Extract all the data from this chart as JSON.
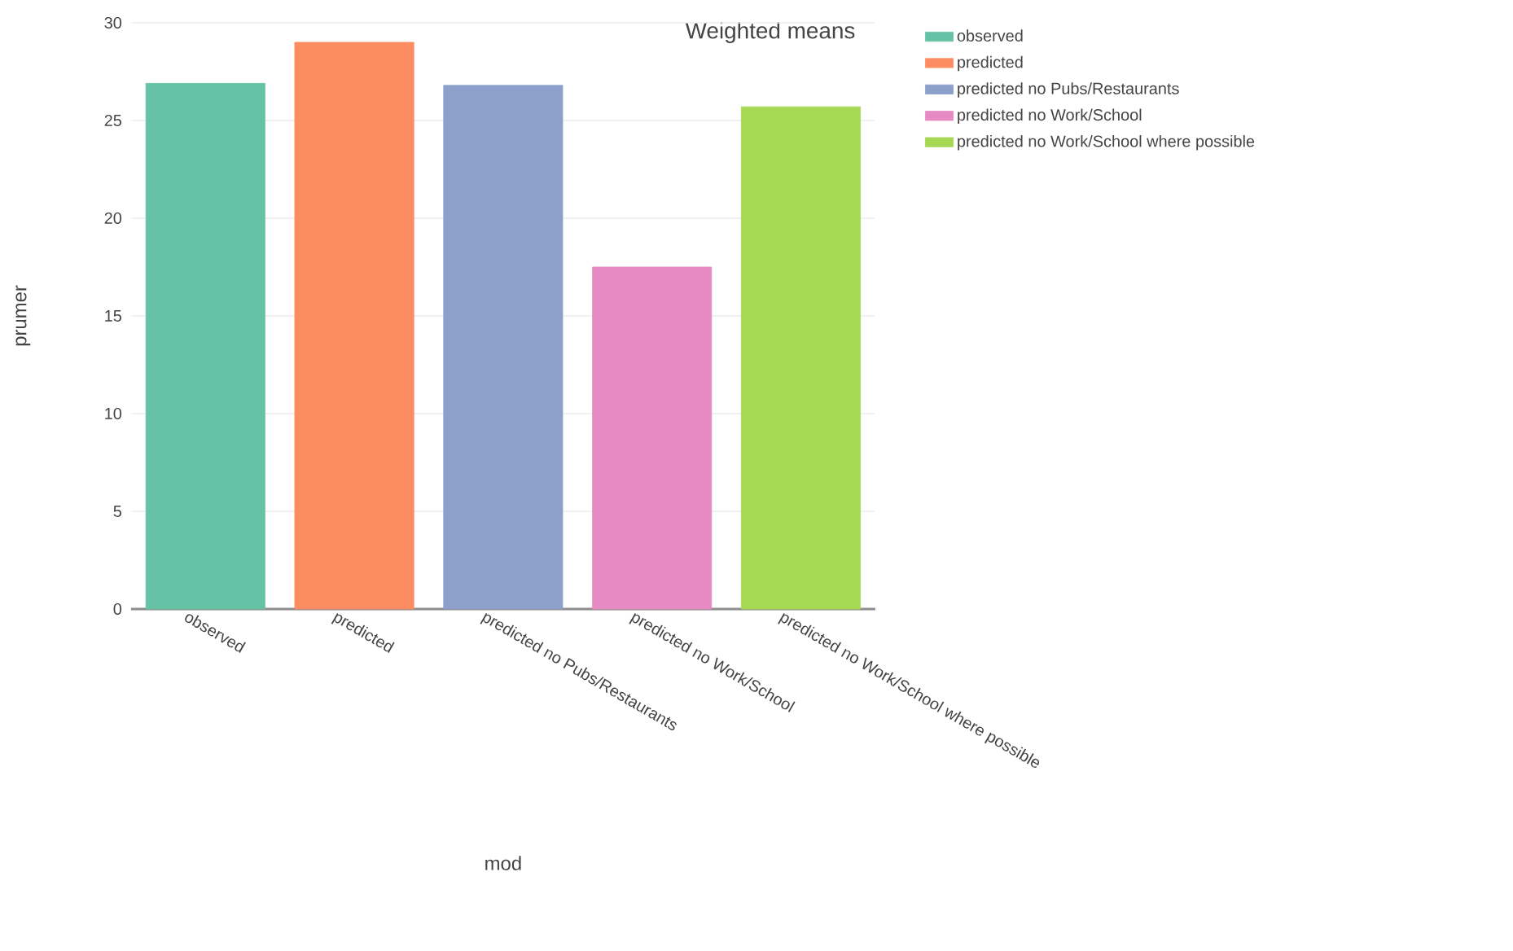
{
  "chart_data": {
    "type": "bar",
    "title": "Weighted means",
    "xlabel": "mod",
    "ylabel": "prumer",
    "categories": [
      "observed",
      "predicted",
      "predicted no Pubs/Restaurants",
      "predicted no Work/School",
      "predicted no Work/School where possible"
    ],
    "series": [
      {
        "name": "observed",
        "color": "#66c2a5",
        "values": [
          26.9,
          null,
          null,
          null,
          null
        ]
      },
      {
        "name": "predicted",
        "color": "#fc8d62",
        "values": [
          null,
          29.0,
          null,
          null,
          null
        ]
      },
      {
        "name": "predicted no Pubs/Restaurants",
        "color": "#8da0cb",
        "values": [
          null,
          null,
          26.8,
          null,
          null
        ]
      },
      {
        "name": "predicted no Work/School",
        "color": "#e78ac3",
        "values": [
          null,
          null,
          null,
          17.5,
          null
        ]
      },
      {
        "name": "predicted no Work/School where possible",
        "color": "#a6d854",
        "values": [
          null,
          null,
          null,
          null,
          25.7
        ]
      }
    ],
    "ylim": [
      0,
      30
    ],
    "yticks": [
      0,
      5,
      10,
      15,
      20,
      25,
      30
    ],
    "grid": "y",
    "legend": "top right"
  }
}
